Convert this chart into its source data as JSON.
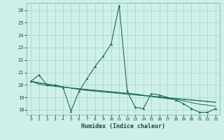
{
  "title": "",
  "xlabel": "Humidex (Indice chaleur)",
  "ylabel": "",
  "bg_color": "#cff0ea",
  "grid_color": "#aad8d2",
  "line_color": "#1a6b5a",
  "xlim": [
    -0.5,
    23.5
  ],
  "ylim": [
    17.6,
    26.6
  ],
  "xticks": [
    0,
    1,
    2,
    3,
    4,
    5,
    6,
    7,
    8,
    9,
    10,
    11,
    12,
    13,
    14,
    15,
    16,
    17,
    18,
    19,
    20,
    21,
    22,
    23
  ],
  "yticks": [
    18,
    19,
    20,
    21,
    22,
    23,
    24,
    25,
    26
  ],
  "series0": [
    20.3,
    20.8,
    20.0,
    20.0,
    19.8,
    17.9,
    19.5,
    20.5,
    21.5,
    22.3,
    23.3,
    26.4,
    19.5,
    18.2,
    18.1,
    19.3,
    19.2,
    19.0,
    18.8,
    18.5,
    18.1,
    17.8,
    17.8,
    18.1
  ],
  "series1": [
    20.3,
    20.15,
    20.05,
    19.95,
    19.85,
    19.75,
    19.65,
    19.58,
    19.52,
    19.46,
    19.4,
    19.34,
    19.28,
    19.22,
    19.16,
    19.1,
    19.04,
    18.98,
    18.92,
    18.86,
    18.8,
    18.74,
    18.68,
    18.62
  ],
  "series2": [
    20.3,
    20.18,
    20.07,
    19.96,
    19.85,
    19.74,
    19.63,
    19.56,
    19.5,
    19.44,
    19.38,
    19.32,
    19.26,
    19.2,
    19.14,
    19.08,
    19.02,
    18.96,
    18.9,
    18.84,
    18.78,
    18.72,
    18.66,
    18.6
  ],
  "series3": [
    20.3,
    20.05,
    19.95,
    19.88,
    19.82,
    19.76,
    19.7,
    19.64,
    19.58,
    19.52,
    19.46,
    19.4,
    19.34,
    19.28,
    19.18,
    19.08,
    18.98,
    18.9,
    18.82,
    18.72,
    18.58,
    18.45,
    18.38,
    18.28
  ]
}
